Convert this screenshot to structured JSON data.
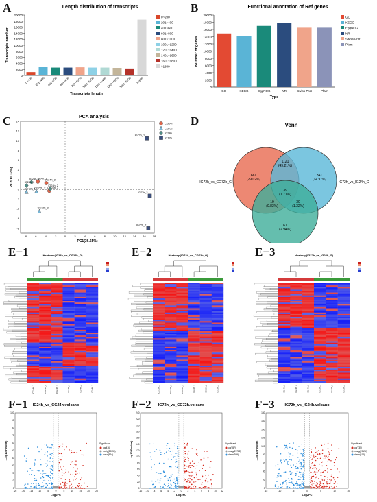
{
  "panel_labels": {
    "A": "A",
    "B": "B",
    "C": "C",
    "D": "D",
    "E1": "E−1",
    "E2": "E−2",
    "E3": "E−3",
    "F1": "F−1",
    "F2": "F−2",
    "F3": "F−3"
  },
  "chart_data": [
    {
      "id": "A",
      "type": "bar",
      "title": "Length distribution of transcripts",
      "xlabel": "Transcripts length",
      "ylabel": "Transcripts number",
      "ylim": [
        0,
        20000
      ],
      "yticks": [
        0,
        2000,
        4000,
        6000,
        8000,
        10000,
        12000,
        14000,
        16000,
        18000,
        20000
      ],
      "categories": [
        "0~200",
        "201~400",
        "401~600",
        "601~800",
        "801~1000",
        "1001~1200",
        "1201~1400",
        "1401~1600",
        "1601~1800",
        ">1800"
      ],
      "values": [
        1100,
        2800,
        2600,
        2600,
        2700,
        2600,
        2600,
        2500,
        2300,
        18500
      ],
      "colors": [
        "#d9472b",
        "#5ab4d6",
        "#1a8a7a",
        "#2b4c7e",
        "#f0a48a",
        "#8ed1e6",
        "#b0d9d4",
        "#c3b59a",
        "#b5322a",
        "#d8d8d8"
      ],
      "legend": [
        "0~200",
        "201~400",
        "401~600",
        "601~800",
        "801~1000",
        "1001~1200",
        "1201~1400",
        "1401~1600",
        "1601~1800",
        ">1800"
      ]
    },
    {
      "id": "B",
      "type": "bar",
      "title": "Functional annotation of Ref genes",
      "xlabel": "Type",
      "ylabel": "Number of genes",
      "ylim": [
        0,
        20000
      ],
      "yticks": [
        0,
        2000,
        4000,
        6000,
        8000,
        10000,
        12000,
        14000,
        16000,
        18000,
        20000
      ],
      "categories": [
        "GO",
        "KEGG",
        "EggNOG",
        "NR",
        "Swiss-Prot",
        "Pfam"
      ],
      "values": [
        14900,
        14200,
        17000,
        17800,
        16500,
        16500
      ],
      "colors": [
        "#e34a33",
        "#5ab4d6",
        "#1a8a7a",
        "#2b4c7e",
        "#f0a48a",
        "#8b93b8"
      ],
      "legend": [
        "GO",
        "KEGG",
        "EggNOG",
        "NR",
        "Swiss-Prot",
        "Pfam"
      ]
    },
    {
      "id": "C",
      "type": "scatter",
      "title": "PCA analysis",
      "xlabel": "PC1(36.65%)",
      "ylabel": "PC2(11.37%)",
      "xlim": [
        -9,
        18
      ],
      "ylim": [
        -9,
        14
      ],
      "xticks": [
        -8,
        -6,
        -4,
        -2,
        0,
        2,
        4,
        6,
        8,
        10,
        12,
        14,
        16,
        18
      ],
      "yticks": [
        -8,
        -6,
        -4,
        -2,
        0,
        2,
        4,
        6,
        8,
        10,
        12,
        14
      ],
      "series": [
        {
          "name": "CG24h",
          "color": "#e0654a",
          "shape": "circle",
          "points": [
            {
              "x": -3.8,
              "y": 1.3,
              "label": "CG24h_2"
            },
            {
              "x": -5.5,
              "y": 1.6,
              "label": "CG24h_1"
            },
            {
              "x": -3.2,
              "y": -0.3,
              "label": "CG24h_3"
            }
          ]
        },
        {
          "name": "CG72h",
          "color": "#7ab8d8",
          "shape": "triangle",
          "points": [
            {
              "x": -7.8,
              "y": -0.5,
              "label": "CG72h_1"
            },
            {
              "x": -5.8,
              "y": -0.4,
              "label": "CG72h_2"
            },
            {
              "x": -5.2,
              "y": -4.5,
              "label": "CG72h_3"
            }
          ]
        },
        {
          "name": "IG24h",
          "color": "#4f8f88",
          "shape": "diamond",
          "points": [
            {
              "x": -6.8,
              "y": 1.5,
              "label": "IG24h_1"
            },
            {
              "x": -7.8,
              "y": 0.8,
              "label": "IG24h_3"
            },
            {
              "x": -3.0,
              "y": 0.1,
              "label": "IG24h_2"
            }
          ]
        },
        {
          "name": "IG72h",
          "color": "#3a4e7e",
          "shape": "square",
          "points": [
            {
              "x": 16.5,
              "y": 10.5,
              "label": "IG72h_1"
            },
            {
              "x": 17.1,
              "y": -1.3,
              "label": "IG72h_3"
            },
            {
              "x": 16.8,
              "y": -8.0,
              "label": "IG72h_2"
            }
          ]
        }
      ]
    },
    {
      "id": "D",
      "type": "venn",
      "title": "Venn",
      "sets": [
        "IG72h_vs_CG72h_G",
        "IG72h_vs_IG24h_G",
        "IG24h_vs_CG24h_G"
      ],
      "colors": [
        "#e86a50",
        "#5ab8d8",
        "#3fae9a"
      ],
      "regions": [
        {
          "count": "661",
          "pct": "(29.02%)"
        },
        {
          "count": "1121",
          "pct": "(49.21%)"
        },
        {
          "count": "341",
          "pct": "(14.97%)"
        },
        {
          "count": "39",
          "pct": "(1.71%)"
        },
        {
          "count": "19",
          "pct": "(0.83%)"
        },
        {
          "count": "30",
          "pct": "(1.32%)"
        },
        {
          "count": "67",
          "pct": "(2.94%)"
        }
      ]
    },
    {
      "id": "E1",
      "type": "heatmap",
      "title": "Heatmap(IG24h_vs_CG24h_G)",
      "columns": [
        "CG24h_1",
        "CG24h_2",
        "CG24h_3",
        "IG24h_1",
        "IG24h_2",
        "IG24h_3"
      ],
      "groups": [
        "#3a9a3a",
        "#d43b3b"
      ]
    },
    {
      "id": "E2",
      "type": "heatmap",
      "title": "Heatmap(IG72h_vs_CG72h_G)",
      "columns": [
        "CG72h_1",
        "CG72h_2",
        "CG72h_3",
        "IG72h_1",
        "IG72h_2",
        "IG72h_3"
      ],
      "groups": [
        "#d43b3b",
        "#3a9a3a"
      ]
    },
    {
      "id": "E3",
      "type": "heatmap",
      "title": "Heatmap(IG72h_vs_IG24h_G)",
      "columns": [
        "IG24h_1",
        "IG24h_2",
        "IG24h_3",
        "IG72h_1",
        "IG72h_2",
        "IG72h_3"
      ],
      "groups": [
        "#d43b3b",
        "#3a9a3a"
      ]
    },
    {
      "id": "F1",
      "type": "scatter",
      "title": "IG24h_vs_CG24h.volcano",
      "xlabel": "Log2FC",
      "ylabel": "-Log10(Pvalue)",
      "xlim": [
        -25,
        25
      ],
      "xticks": [
        -25,
        -20,
        -15,
        -10,
        -5,
        0,
        5,
        10,
        15,
        20,
        25
      ],
      "ylim": [
        0,
        100
      ],
      "yticks": [
        0,
        10,
        20,
        30,
        40,
        50,
        60,
        70,
        80,
        90,
        100
      ],
      "legend_title": "Significant",
      "legend": [
        "up(416)",
        "nosig(29035)",
        "down(564)"
      ]
    },
    {
      "id": "F2",
      "type": "scatter",
      "title": "IG72h_vs_CG72h.volcano",
      "xlabel": "Log2FC",
      "ylabel": "-Log10(Pvalue)",
      "xlim": [
        -12,
        12
      ],
      "xticks": [
        -12,
        -10,
        -8,
        -6,
        -4,
        -2,
        0,
        2,
        4,
        6,
        8,
        10,
        12
      ],
      "ylim": [
        0,
        240
      ],
      "yticks": [
        0,
        20,
        40,
        60,
        80,
        100,
        120,
        140,
        160,
        180,
        200,
        220,
        240
      ],
      "legend_title": "Significant",
      "legend": [
        "up(557)",
        "nosig(29788)",
        "down(399)"
      ]
    },
    {
      "id": "F3",
      "type": "scatter",
      "title": "IG72h_vs_IG24h.volcano",
      "xlabel": "Log2FC",
      "ylabel": "-Log10(Pvalue)",
      "xlim": [
        -15,
        15
      ],
      "xticks": [
        -15,
        -10,
        -5,
        0,
        5,
        10,
        15
      ],
      "ylim": [
        0,
        180
      ],
      "yticks": [
        0,
        20,
        40,
        60,
        80,
        100,
        120,
        140,
        160,
        180
      ],
      "legend_title": "Significant",
      "legend": [
        "up(735)",
        "nosig(29194)",
        "down(812)"
      ]
    }
  ]
}
